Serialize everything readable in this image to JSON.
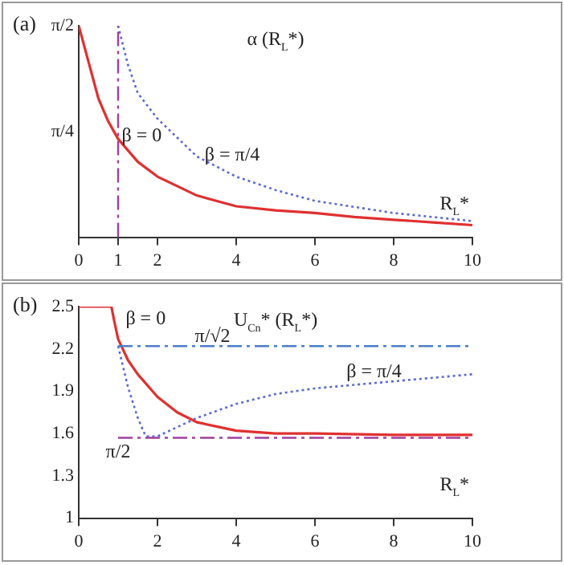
{
  "chart_data": [
    {
      "type": "line",
      "title": "(a)",
      "xlabel": "R$_{L}$*",
      "ylabel": "α (R$_{L}$*)",
      "xlim": [
        0,
        10
      ],
      "xticks": [
        0,
        1,
        2,
        4,
        6,
        8,
        10
      ],
      "ylim": [
        0,
        1.5708
      ],
      "yticks": [
        {
          "value": 0.7854,
          "label": "π/4"
        },
        {
          "value": 1.5708,
          "label": "π/2"
        }
      ],
      "grid": false,
      "legend": false,
      "series": [
        {
          "name": "β = 0",
          "color": "#e03030",
          "line_style": "solid",
          "x": [
            0,
            0.25,
            0.5,
            0.75,
            1,
            1.5,
            2,
            3,
            4,
            5,
            6,
            7,
            8,
            9,
            10
          ],
          "values": [
            1.57,
            1.3,
            1.03,
            0.86,
            0.73,
            0.56,
            0.45,
            0.31,
            0.23,
            0.2,
            0.18,
            0.15,
            0.13,
            0.11,
            0.09
          ]
        },
        {
          "name": "β = π/4",
          "color": "#5a6ad0",
          "line_style": "dotted",
          "x": [
            1,
            1.25,
            1.5,
            2,
            3,
            4,
            5,
            6,
            8,
            10
          ],
          "values": [
            1.57,
            1.28,
            1.07,
            0.88,
            0.6,
            0.45,
            0.35,
            0.27,
            0.18,
            0.12
          ]
        }
      ],
      "ref_lines": [
        {
          "axis": "x",
          "value": 1,
          "color": "#a040a0",
          "line_style": "dashed"
        }
      ]
    },
    {
      "type": "line",
      "title": "(b)",
      "xlabel": "R$_{L}$*",
      "ylabel": "U$_{Cn}$* (R$_{L}$*)",
      "xlim": [
        0,
        10
      ],
      "xticks": [
        0,
        2,
        4,
        6,
        8,
        10
      ],
      "ylim": [
        1,
        2.5
      ],
      "yticks": [
        1,
        1.3,
        1.6,
        1.9,
        2.2,
        2.5
      ],
      "grid": false,
      "legend": false,
      "series": [
        {
          "name": "π/√2",
          "color": "#4a7fc8",
          "line_style": "dashed",
          "x": [
            1,
            10
          ],
          "values": [
            2.22,
            2.22
          ]
        },
        {
          "name": "π/2",
          "color": "#a040a0",
          "line_style": "dashed",
          "x": [
            1,
            10
          ],
          "values": [
            1.57,
            1.57
          ]
        },
        {
          "name": "β = 0",
          "color": "#e03030",
          "line_style": "solid",
          "x": [
            0,
            0.83,
            0.9,
            1,
            1.25,
            1.5,
            2,
            2.5,
            3,
            4,
            5,
            6,
            8,
            10
          ],
          "values": [
            2.5,
            2.5,
            2.4,
            2.27,
            2.12,
            2.02,
            1.86,
            1.75,
            1.68,
            1.62,
            1.6,
            1.6,
            1.59,
            1.59
          ]
        },
        {
          "name": "β = π/4",
          "color": "#5a6ad0",
          "line_style": "dotted",
          "x": [
            1,
            1.25,
            1.5,
            1.7,
            2,
            3,
            4,
            5,
            6,
            8,
            10
          ],
          "values": [
            2.22,
            1.93,
            1.71,
            1.58,
            1.58,
            1.71,
            1.81,
            1.88,
            1.92,
            1.97,
            2.02
          ]
        }
      ]
    }
  ]
}
